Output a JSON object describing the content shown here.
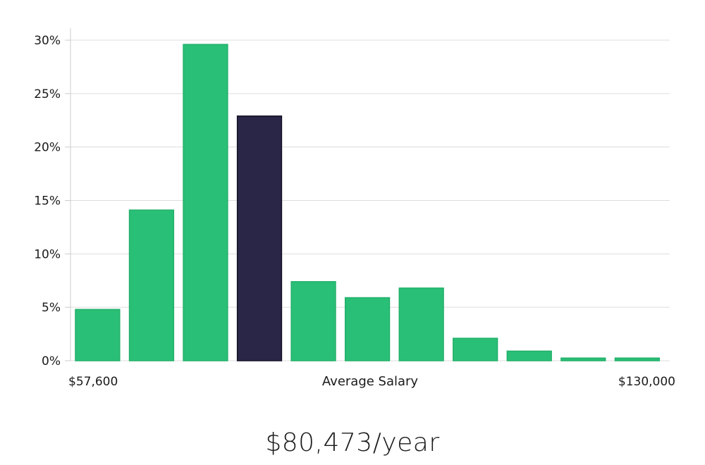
{
  "chart_data": {
    "type": "bar",
    "title": "",
    "xlabel": "Average Salary",
    "ylabel": "",
    "x_min_label": "$57,600",
    "x_max_label": "$130,000",
    "ylim": [
      0,
      30
    ],
    "yticks": [
      0,
      5,
      10,
      15,
      20,
      25,
      30
    ],
    "ytick_labels": [
      "0%",
      "5%",
      "10%",
      "15%",
      "20%",
      "25%",
      "30%"
    ],
    "values": [
      4.8,
      14.1,
      29.6,
      22.9,
      7.4,
      5.9,
      6.8,
      2.1,
      0.9,
      0.25,
      0.25
    ],
    "highlight_index": 3,
    "colors": {
      "bar": "#2ABF76",
      "bar_stroke": "#22B06A",
      "highlight": "#2A2647",
      "highlight_stroke": "#141128",
      "grid": "#DDDDDD",
      "axis": "#CCCCCC"
    }
  },
  "summary": {
    "salary_text": "$80,473/year"
  }
}
